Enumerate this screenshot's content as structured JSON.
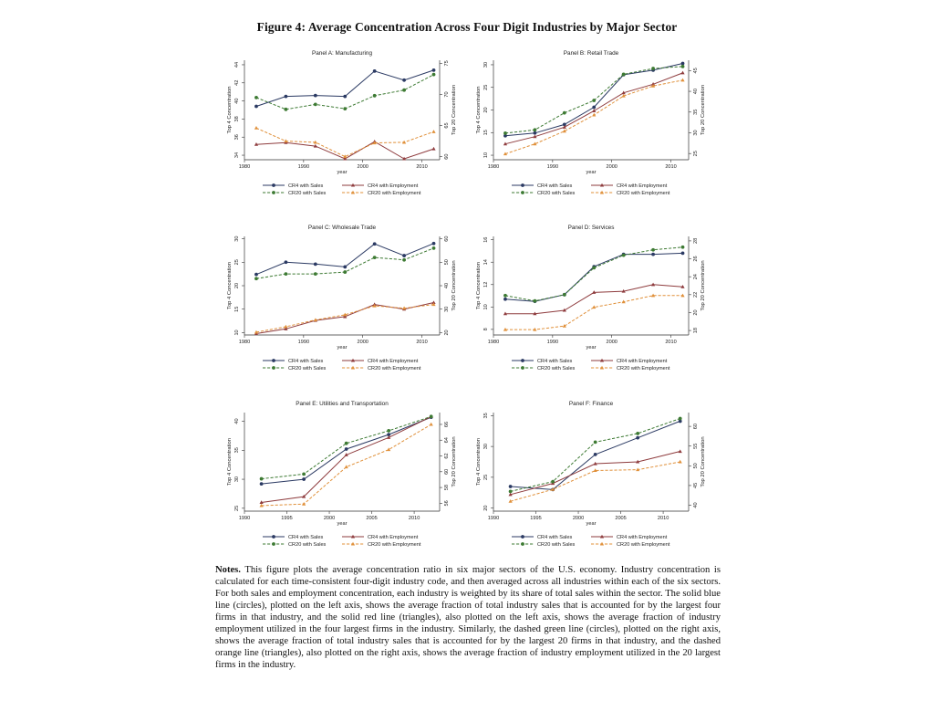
{
  "figure": {
    "title": "Figure 4: Average Concentration Across Four Digit Industries by Major Sector",
    "notes_label": "Notes.",
    "notes_text": "This figure plots the average concentration ratio in six major sectors of the U.S. economy. Industry concentration is calculated for each time-consistent four-digit industry code, and then averaged across all industries within each of the six sectors. For both sales and employment concentration, each industry is weighted by its share of total sales within the sector. The solid blue line (circles), plotted on the left axis, shows the average fraction of total industry sales that is accounted for by the largest four firms in that industry, and the solid red line (triangles), also plotted on the left axis, shows the average fraction of industry employment utilized in the four largest firms in the industry. Similarly, the dashed green line (circles), plotted on the right axis, shows the average fraction of total industry sales that is accounted for by the largest 20 firms in that industry, and the dashed orange line (triangles), also plotted on the right axis, shows the average fraction of industry employment utilized in the 20 largest firms in the industry."
  },
  "legend_labels": [
    "CR4 with Sales",
    "CR4 with Employment",
    "CR20 with Sales",
    "CR20 with Employment"
  ],
  "colors": {
    "cr4_sales": "#2b3a63",
    "cr4_emp": "#8e3b3d",
    "cr20_sales": "#3d7a33",
    "cr20_emp": "#e0903a",
    "axis": "#333333"
  },
  "chart_data": [
    {
      "type": "line",
      "title": "Panel A: Manufacturing",
      "xlabel": "year",
      "ylabel_left": "Top 4 Concentration",
      "ylabel_right": "Top 20 Concentration",
      "xlim": [
        1980,
        2013
      ],
      "xticks": [
        1980,
        1990,
        2000,
        2010
      ],
      "ylim_left": [
        33.5,
        44.5
      ],
      "yticks_left": [
        34,
        36,
        38,
        40,
        42,
        44
      ],
      "ylim_right": [
        59.5,
        75.5
      ],
      "yticks_right": [
        60,
        65,
        70,
        75
      ],
      "x": [
        1982,
        1987,
        1992,
        1997,
        2002,
        2007,
        2012
      ],
      "series": [
        {
          "name": "CR4 with Sales",
          "axis": "left",
          "style": "solid",
          "marker": "circle",
          "color": "cr4_sales",
          "values": [
            39.4,
            40.5,
            40.6,
            40.5,
            43.3,
            42.3,
            43.4
          ]
        },
        {
          "name": "CR4 with Employment",
          "axis": "left",
          "style": "solid",
          "marker": "triangle",
          "color": "cr4_emp",
          "values": [
            35.2,
            35.4,
            35.0,
            33.6,
            35.5,
            33.6,
            34.7
          ]
        },
        {
          "name": "CR20 with Sales",
          "axis": "right",
          "style": "dashed",
          "marker": "circle",
          "color": "cr20_sales",
          "values": [
            69.5,
            67.6,
            68.4,
            67.7,
            69.8,
            70.7,
            73.2
          ]
        },
        {
          "name": "CR20 with Employment",
          "axis": "right",
          "style": "dashed",
          "marker": "triangle",
          "color": "cr20_emp",
          "values": [
            64.6,
            62.5,
            62.3,
            60.0,
            62.2,
            62.3,
            64.0
          ]
        }
      ]
    },
    {
      "type": "line",
      "title": "Panel B: Retail Trade",
      "xlabel": "year",
      "ylabel_left": "Top 4 Concentration",
      "ylabel_right": "Top 20 Concentration",
      "xlim": [
        1980,
        2013
      ],
      "xticks": [
        1980,
        1990,
        2000,
        2010
      ],
      "ylim_left": [
        9,
        31
      ],
      "yticks_left": [
        10,
        15,
        20,
        25,
        30
      ],
      "ylim_right": [
        23.5,
        47.5
      ],
      "yticks_right": [
        25,
        30,
        35,
        40,
        45
      ],
      "x": [
        1982,
        1987,
        1992,
        1997,
        2002,
        2007,
        2012
      ],
      "series": [
        {
          "name": "CR4 with Sales",
          "axis": "left",
          "style": "solid",
          "marker": "circle",
          "color": "cr4_sales",
          "values": [
            14.3,
            14.9,
            16.8,
            20.6,
            27.8,
            28.8,
            30.3
          ]
        },
        {
          "name": "CR4 with Employment",
          "axis": "left",
          "style": "solid",
          "marker": "triangle",
          "color": "cr4_emp",
          "values": [
            12.5,
            14.1,
            16.2,
            19.8,
            23.8,
            25.7,
            28.2
          ]
        },
        {
          "name": "CR20 with Sales",
          "axis": "right",
          "style": "dashed",
          "marker": "circle",
          "color": "cr20_sales",
          "values": [
            29.9,
            30.7,
            34.8,
            37.8,
            44.1,
            45.5,
            46.0
          ]
        },
        {
          "name": "CR20 with Employment",
          "axis": "right",
          "style": "dashed",
          "marker": "triangle",
          "color": "cr20_emp",
          "values": [
            24.9,
            27.3,
            30.4,
            34.3,
            38.9,
            41.3,
            42.7
          ]
        }
      ]
    },
    {
      "type": "line",
      "title": "Panel C: Wholesale Trade",
      "xlabel": "year",
      "ylabel_left": "Top 4 Concentration",
      "ylabel_right": "Top 20 Concentration",
      "xlim": [
        1980,
        2013
      ],
      "xticks": [
        1980,
        1990,
        2000,
        2010
      ],
      "ylim_left": [
        9.5,
        30.5
      ],
      "yticks_left": [
        10,
        15,
        20,
        25,
        30
      ],
      "ylim_right": [
        19,
        61
      ],
      "yticks_right": [
        20,
        30,
        40,
        50,
        60
      ],
      "x": [
        1982,
        1987,
        1992,
        1997,
        2002,
        2007,
        2012
      ],
      "series": [
        {
          "name": "CR4 with Sales",
          "axis": "left",
          "style": "solid",
          "marker": "circle",
          "color": "cr4_sales",
          "values": [
            22.4,
            25.0,
            24.6,
            24.0,
            28.9,
            26.4,
            29.0
          ]
        },
        {
          "name": "CR4 with Employment",
          "axis": "left",
          "style": "solid",
          "marker": "triangle",
          "color": "cr4_emp",
          "values": [
            9.8,
            10.8,
            12.6,
            13.4,
            16.0,
            15.0,
            16.4
          ]
        },
        {
          "name": "CR20 with Sales",
          "axis": "right",
          "style": "dashed",
          "marker": "circle",
          "color": "cr20_sales",
          "values": [
            43.0,
            45.0,
            45.0,
            45.8,
            52.0,
            51.0,
            56.0
          ]
        },
        {
          "name": "CR20 with Employment",
          "axis": "right",
          "style": "dashed",
          "marker": "triangle",
          "color": "cr20_emp",
          "values": [
            20.2,
            22.5,
            25.4,
            27.6,
            31.4,
            30.4,
            32.0
          ]
        }
      ]
    },
    {
      "type": "line",
      "title": "Panel D: Services",
      "xlabel": "year",
      "ylabel_left": "Top 4 Concentration",
      "ylabel_right": "Top 20 Concentration",
      "xlim": [
        1980,
        2013
      ],
      "xticks": [
        1980,
        1990,
        2000,
        2010
      ],
      "ylim_left": [
        7.5,
        16.3
      ],
      "yticks_left": [
        8,
        10,
        12,
        14,
        16
      ],
      "ylim_right": [
        17.5,
        28.5
      ],
      "yticks_right": [
        18,
        20,
        22,
        24,
        26,
        28
      ],
      "x": [
        1982,
        1987,
        1992,
        1997,
        2002,
        2007,
        2012
      ],
      "series": [
        {
          "name": "CR4 with Sales",
          "axis": "left",
          "style": "solid",
          "marker": "circle",
          "color": "cr4_sales",
          "values": [
            10.7,
            10.5,
            11.1,
            13.6,
            14.7,
            14.7,
            14.8
          ]
        },
        {
          "name": "CR4 with Employment",
          "axis": "left",
          "style": "solid",
          "marker": "triangle",
          "color": "cr4_emp",
          "values": [
            9.4,
            9.4,
            9.7,
            11.3,
            11.4,
            12.0,
            11.8
          ]
        },
        {
          "name": "CR20 with Sales",
          "axis": "right",
          "style": "dashed",
          "marker": "circle",
          "color": "cr20_sales",
          "values": [
            21.9,
            21.3,
            22.0,
            25.0,
            26.4,
            27.0,
            27.3
          ]
        },
        {
          "name": "CR20 with Employment",
          "axis": "right",
          "style": "dashed",
          "marker": "triangle",
          "color": "cr20_emp",
          "values": [
            18.1,
            18.1,
            18.5,
            20.6,
            21.2,
            21.9,
            21.9
          ]
        }
      ]
    },
    {
      "type": "line",
      "title": "Panel E: Utilities and Transportation",
      "xlabel": "year",
      "ylabel_left": "Top 4 Concentration",
      "ylabel_right": "Top 20 Concentration",
      "xlim": [
        1990,
        2013
      ],
      "xticks": [
        1990,
        1995,
        2000,
        2005,
        2010
      ],
      "ylim_left": [
        24.5,
        41.5
      ],
      "yticks_left": [
        25,
        30,
        35,
        40
      ],
      "ylim_right": [
        55,
        67.5
      ],
      "yticks_right": [
        56,
        58,
        60,
        62,
        64,
        66
      ],
      "x": [
        1992,
        1997,
        2002,
        2007,
        2012
      ],
      "series": [
        {
          "name": "CR4 with Sales",
          "axis": "left",
          "style": "solid",
          "marker": "circle",
          "color": "cr4_sales",
          "values": [
            29.2,
            30.0,
            35.2,
            37.7,
            40.7
          ]
        },
        {
          "name": "CR4 with Employment",
          "axis": "left",
          "style": "solid",
          "marker": "triangle",
          "color": "cr4_emp",
          "values": [
            26.0,
            27.0,
            34.2,
            37.2,
            40.8
          ]
        },
        {
          "name": "CR20 with Sales",
          "axis": "right",
          "style": "dashed",
          "marker": "circle",
          "color": "cr20_sales",
          "values": [
            59.1,
            59.7,
            63.6,
            65.2,
            67.0
          ]
        },
        {
          "name": "CR20 with Employment",
          "axis": "right",
          "style": "dashed",
          "marker": "triangle",
          "color": "cr20_emp",
          "values": [
            55.7,
            55.9,
            60.6,
            62.8,
            66.0
          ]
        }
      ]
    },
    {
      "type": "line",
      "title": "Panel F: Finance",
      "xlabel": "year",
      "ylabel_left": "Top 4 Concentration",
      "ylabel_right": "Top 20 Concentration",
      "xlim": [
        1990,
        2013
      ],
      "xticks": [
        1990,
        1995,
        2000,
        2005,
        2010
      ],
      "ylim_left": [
        19.5,
        35.5
      ],
      "yticks_left": [
        20,
        25,
        30,
        35
      ],
      "ylim_right": [
        38.5,
        63.5
      ],
      "yticks_right": [
        40,
        45,
        50,
        55,
        60
      ],
      "x": [
        1992,
        1997,
        2002,
        2007,
        2012
      ],
      "series": [
        {
          "name": "CR4 with Sales",
          "axis": "left",
          "style": "solid",
          "marker": "circle",
          "color": "cr4_sales",
          "values": [
            23.5,
            23.0,
            28.7,
            31.4,
            34.1
          ]
        },
        {
          "name": "CR4 with Employment",
          "axis": "left",
          "style": "solid",
          "marker": "triangle",
          "color": "cr4_emp",
          "values": [
            22.2,
            24.0,
            27.2,
            27.5,
            29.2
          ]
        },
        {
          "name": "CR20 with Sales",
          "axis": "right",
          "style": "dashed",
          "marker": "circle",
          "color": "cr20_sales",
          "values": [
            43.5,
            46.0,
            56.0,
            58.2,
            62.0
          ]
        },
        {
          "name": "CR20 with Employment",
          "axis": "right",
          "style": "dashed",
          "marker": "triangle",
          "color": "cr20_emp",
          "values": [
            41.0,
            44.0,
            48.8,
            49.0,
            51.0
          ]
        }
      ]
    }
  ]
}
